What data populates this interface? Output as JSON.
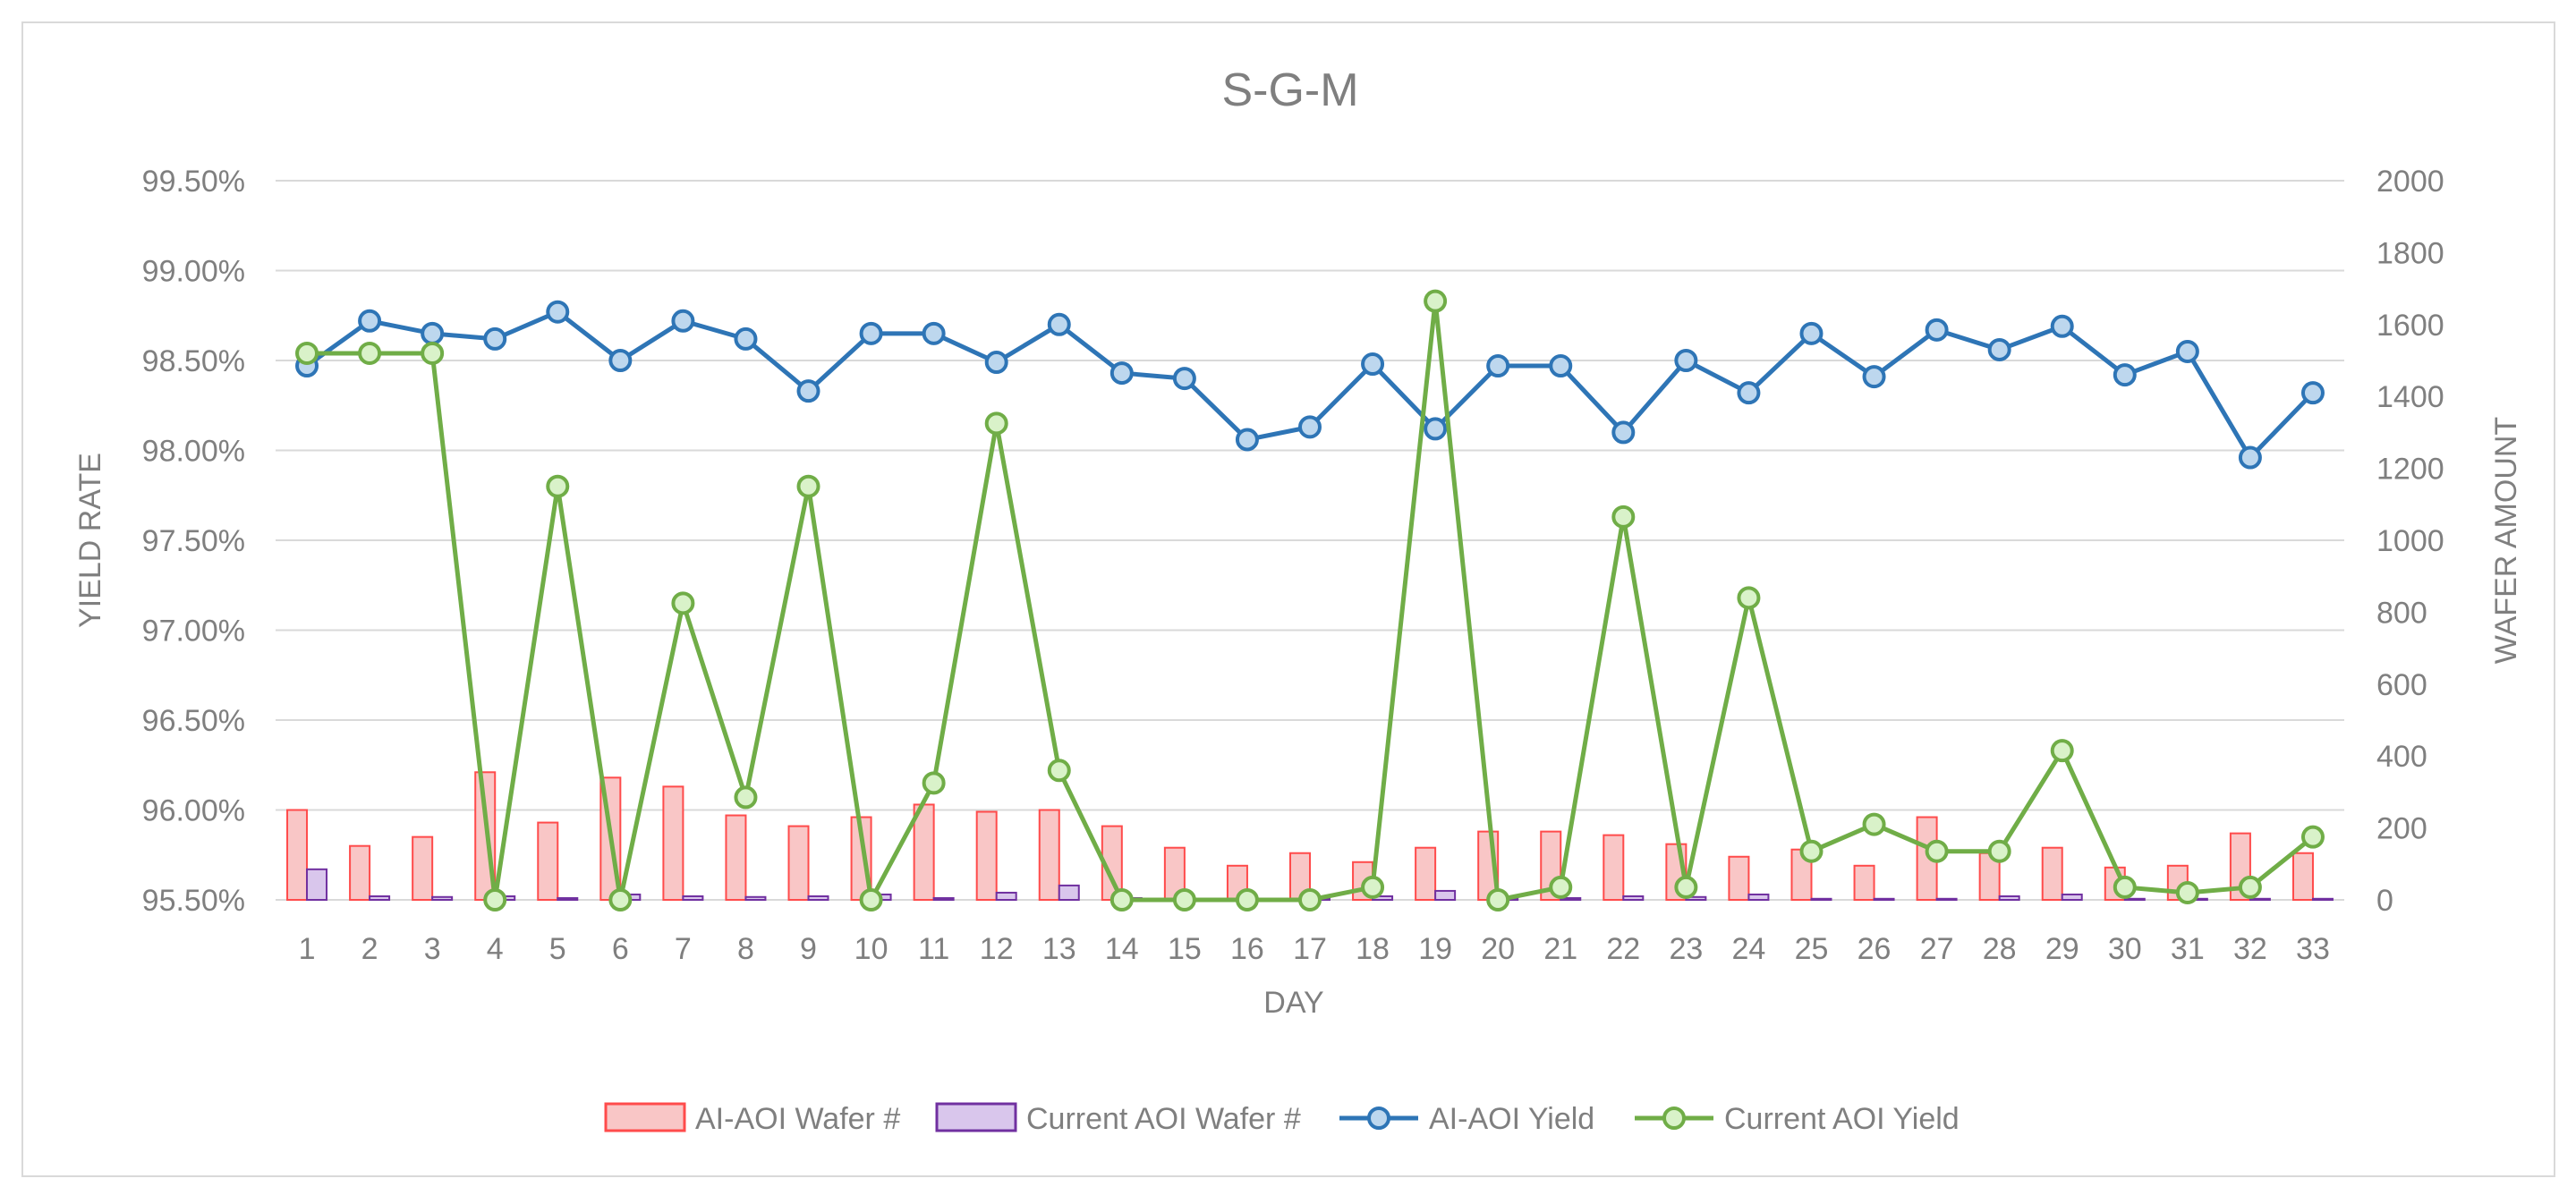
{
  "chart_data": {
    "type": "bar",
    "title": "S-G-M",
    "xlabel": "DAY",
    "ylabel": "YIELD RATE",
    "y2label": "WAFER AMOUNT",
    "categories": [
      "1",
      "2",
      "3",
      "4",
      "5",
      "6",
      "7",
      "8",
      "9",
      "10",
      "11",
      "12",
      "13",
      "14",
      "15",
      "16",
      "17",
      "18",
      "19",
      "20",
      "21",
      "22",
      "23",
      "24",
      "25",
      "26",
      "27",
      "28",
      "29",
      "30",
      "31",
      "32",
      "33"
    ],
    "ylim": [
      95.5,
      99.5
    ],
    "yticks": [
      "95.50%",
      "96.00%",
      "96.50%",
      "97.00%",
      "97.50%",
      "98.00%",
      "98.50%",
      "99.00%",
      "99.50%"
    ],
    "y2lim": [
      0,
      2000
    ],
    "y2ticks": [
      "0",
      "200",
      "400",
      "600",
      "800",
      "1000",
      "1200",
      "1400",
      "1600",
      "1800",
      "2000"
    ],
    "grid": true,
    "legend_position": "bottom",
    "series": [
      {
        "name": "AI-AOI Wafer #",
        "kind": "bar",
        "axis": "right",
        "color": "#ff4b4b",
        "fill": "#f9c6c6",
        "values": [
          250,
          150,
          175,
          355,
          215,
          340,
          315,
          235,
          205,
          230,
          265,
          245,
          250,
          205,
          145,
          95,
          130,
          105,
          145,
          190,
          190,
          180,
          155,
          120,
          140,
          95,
          230,
          130,
          145,
          90,
          95,
          185,
          130
        ]
      },
      {
        "name": "Current AOI Wafer #",
        "kind": "bar",
        "axis": "right",
        "color": "#7030a0",
        "fill": "#d9c6ec",
        "values": [
          85,
          10,
          8,
          10,
          5,
          15,
          10,
          8,
          10,
          15,
          5,
          20,
          40,
          5,
          3,
          3,
          3,
          10,
          25,
          5,
          5,
          10,
          8,
          15,
          3,
          3,
          3,
          10,
          15,
          3,
          3,
          3,
          3
        ]
      },
      {
        "name": "AI-AOI Yield",
        "kind": "line",
        "axis": "left",
        "color": "#2e75b6",
        "marker": "#bdd7ee",
        "values": [
          98.47,
          98.72,
          98.65,
          98.62,
          98.77,
          98.5,
          98.72,
          98.62,
          98.33,
          98.65,
          98.65,
          98.49,
          98.7,
          98.43,
          98.4,
          98.06,
          98.13,
          98.48,
          98.12,
          98.47,
          98.47,
          98.1,
          98.5,
          98.32,
          98.65,
          98.41,
          98.67,
          98.56,
          98.69,
          98.42,
          98.55,
          97.96,
          98.32
        ]
      },
      {
        "name": "Current AOI Yield",
        "kind": "line",
        "axis": "left",
        "color": "#70ad47",
        "marker": "#d9f2c9",
        "values": [
          98.54,
          98.54,
          98.54,
          95.5,
          97.8,
          95.5,
          97.15,
          96.07,
          97.8,
          95.5,
          96.15,
          98.15,
          96.22,
          95.5,
          95.5,
          95.5,
          95.5,
          95.57,
          98.83,
          95.5,
          95.57,
          97.63,
          95.57,
          97.18,
          95.77,
          95.92,
          95.77,
          95.77,
          96.33,
          95.57,
          95.54,
          95.57,
          95.85
        ]
      }
    ]
  }
}
